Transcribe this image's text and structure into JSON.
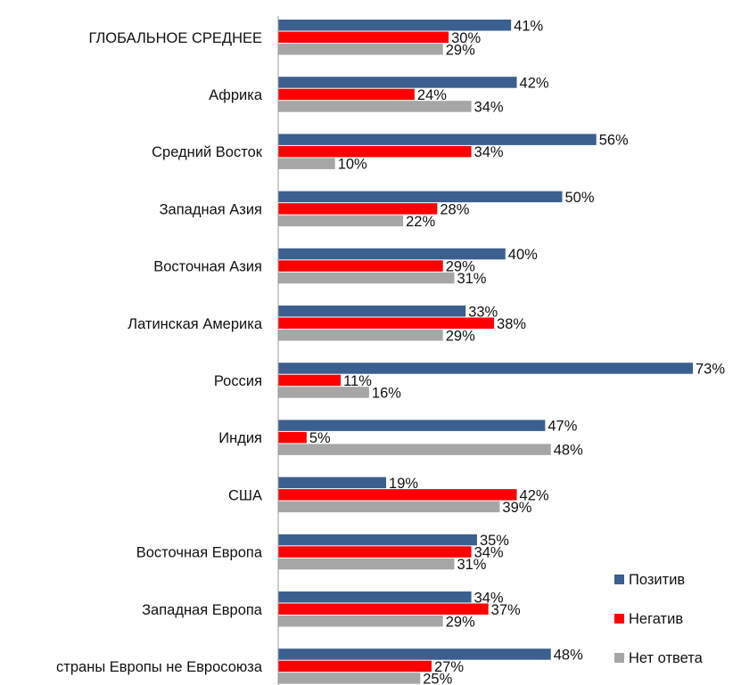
{
  "chart_data": {
    "type": "bar",
    "orientation": "horizontal",
    "categories": [
      "ГЛОБАЛЬНОЕ СРЕДНЕЕ",
      "Африка",
      "Средний Восток",
      "Западная Азия",
      "Восточная Азия",
      "Латинская Америка",
      "Россия",
      "Индия",
      "США",
      "Восточная Европа",
      "Западная Европа",
      "страны Европы не Евросоюза"
    ],
    "series": [
      {
        "name": "Позитив",
        "color": "#3b5f8f",
        "values": [
          41,
          42,
          56,
          50,
          40,
          33,
          73,
          47,
          19,
          35,
          34,
          48
        ]
      },
      {
        "name": "Негатив",
        "color": "#ff0000",
        "values": [
          30,
          24,
          34,
          28,
          29,
          38,
          11,
          5,
          42,
          34,
          37,
          27
        ]
      },
      {
        "name": "Нет ответа",
        "color": "#a6a6a6",
        "values": [
          29,
          34,
          10,
          22,
          31,
          29,
          16,
          48,
          39,
          31,
          29,
          25
        ]
      }
    ],
    "value_suffix": "%",
    "xlim": [
      0,
      73
    ],
    "grid": false,
    "legend_position": "bottom-right"
  }
}
